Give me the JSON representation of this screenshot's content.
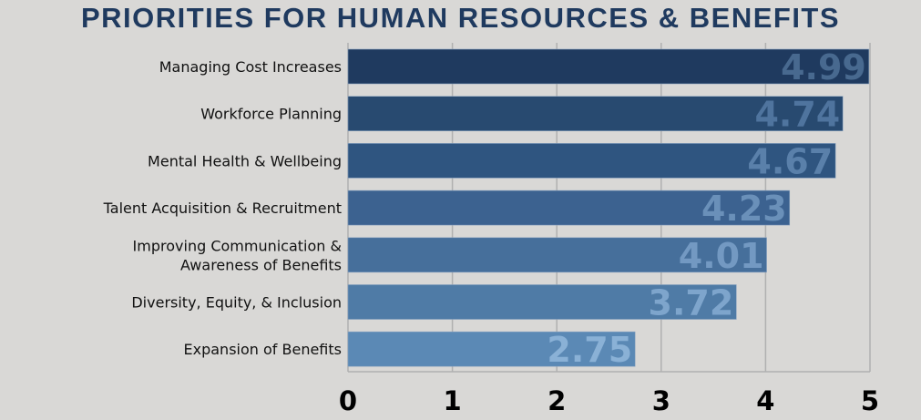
{
  "chart_data": {
    "type": "bar",
    "orientation": "horizontal",
    "title": "PRIORITIES FOR HUMAN RESOURCES & BENEFITS",
    "categories": [
      [
        "Managing Cost Increases"
      ],
      [
        "Workforce Planning"
      ],
      [
        "Mental Health & Wellbeing"
      ],
      [
        "Talent Acquisition & Recruitment"
      ],
      [
        "Improving Communication &",
        "Awareness of Benefits"
      ],
      [
        "Diversity, Equity, & Inclusion"
      ],
      [
        "Expansion of Benefits"
      ]
    ],
    "values": [
      4.99,
      4.74,
      4.67,
      4.23,
      4.01,
      3.72,
      2.75
    ],
    "value_labels": [
      "4.99",
      "4.74",
      "4.67",
      "4.23",
      "4.01",
      "3.72",
      "2.75"
    ],
    "bar_colors": [
      "#1f3a5f",
      "#284a70",
      "#2f5580",
      "#3c6290",
      "#466f9b",
      "#4f7ba6",
      "#5b89b5"
    ],
    "label_colors": [
      "#48698f",
      "#4f749e",
      "#5a80aa",
      "#6a90b9",
      "#7399c2",
      "#7ea5cc",
      "#8ab1d6"
    ],
    "xlim": [
      0,
      5
    ],
    "xticks": [
      "0",
      "1",
      "2",
      "3",
      "4",
      "5"
    ],
    "grid": true,
    "xlabel": "",
    "ylabel": ""
  }
}
